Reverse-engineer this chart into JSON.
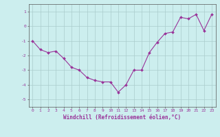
{
  "x": [
    0,
    1,
    2,
    3,
    4,
    5,
    6,
    7,
    8,
    9,
    10,
    11,
    12,
    13,
    14,
    15,
    16,
    17,
    18,
    19,
    20,
    21,
    22,
    23
  ],
  "y": [
    -1.0,
    -1.6,
    -1.8,
    -1.7,
    -2.2,
    -2.8,
    -3.0,
    -3.5,
    -3.7,
    -3.8,
    -3.8,
    -4.5,
    -4.0,
    -3.0,
    -3.0,
    -1.8,
    -1.1,
    -0.5,
    -0.4,
    0.6,
    0.5,
    0.8,
    -0.3,
    0.8
  ],
  "line_color": "#993399",
  "marker": "D",
  "marker_size": 2.0,
  "linewidth": 0.8,
  "xlabel": "Windchill (Refroidissement éolien,°C)",
  "xlabel_fontsize": 5.5,
  "xlim": [
    -0.5,
    23.5
  ],
  "ylim": [
    -5.5,
    1.5
  ],
  "yticks": [
    -5,
    -4,
    -3,
    -2,
    -1,
    0,
    1
  ],
  "xtick_labels": [
    "0",
    "1",
    "2",
    "3",
    "4",
    "5",
    "6",
    "7",
    "8",
    "9",
    "10",
    "11",
    "12",
    "13",
    "14",
    "15",
    "16",
    "17",
    "18",
    "19",
    "20",
    "21",
    "22",
    "23"
  ],
  "bg_color": "#cceeee",
  "grid_color": "#aacccc",
  "tick_fontsize": 4.5,
  "spine_color": "#555555"
}
